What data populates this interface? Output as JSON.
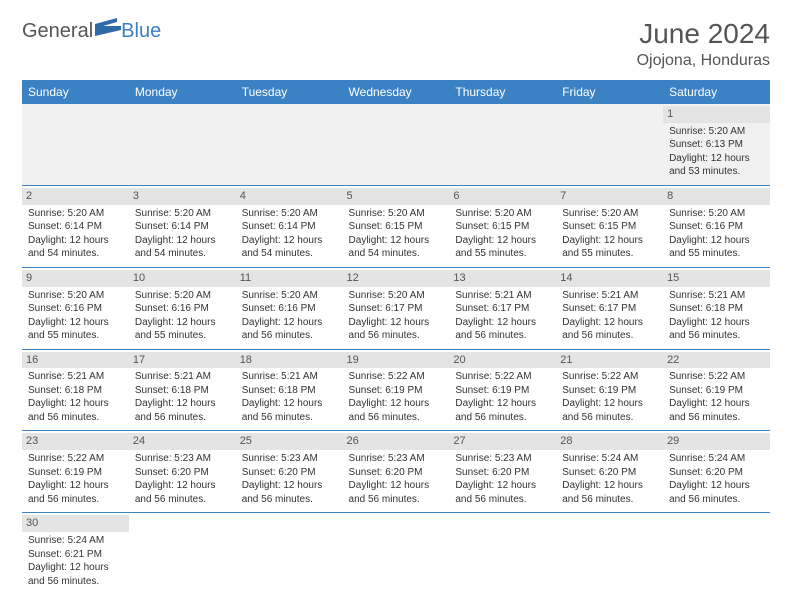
{
  "brand": {
    "part1": "General",
    "part2": "Blue"
  },
  "title": "June 2024",
  "location": "Ojojona, Honduras",
  "colors": {
    "header_bg": "#3b82c4",
    "header_text": "#ffffff",
    "daynum_bg": "#e4e4e4",
    "cell_border": "#3b82c4",
    "text": "#333333",
    "empty_bg": "#f1f1f1"
  },
  "weekdays": [
    "Sunday",
    "Monday",
    "Tuesday",
    "Wednesday",
    "Thursday",
    "Friday",
    "Saturday"
  ],
  "weeks": [
    [
      null,
      null,
      null,
      null,
      null,
      null,
      {
        "d": "1",
        "sr": "Sunrise: 5:20 AM",
        "ss": "Sunset: 6:13 PM",
        "dl1": "Daylight: 12 hours",
        "dl2": "and 53 minutes."
      }
    ],
    [
      {
        "d": "2",
        "sr": "Sunrise: 5:20 AM",
        "ss": "Sunset: 6:14 PM",
        "dl1": "Daylight: 12 hours",
        "dl2": "and 54 minutes."
      },
      {
        "d": "3",
        "sr": "Sunrise: 5:20 AM",
        "ss": "Sunset: 6:14 PM",
        "dl1": "Daylight: 12 hours",
        "dl2": "and 54 minutes."
      },
      {
        "d": "4",
        "sr": "Sunrise: 5:20 AM",
        "ss": "Sunset: 6:14 PM",
        "dl1": "Daylight: 12 hours",
        "dl2": "and 54 minutes."
      },
      {
        "d": "5",
        "sr": "Sunrise: 5:20 AM",
        "ss": "Sunset: 6:15 PM",
        "dl1": "Daylight: 12 hours",
        "dl2": "and 54 minutes."
      },
      {
        "d": "6",
        "sr": "Sunrise: 5:20 AM",
        "ss": "Sunset: 6:15 PM",
        "dl1": "Daylight: 12 hours",
        "dl2": "and 55 minutes."
      },
      {
        "d": "7",
        "sr": "Sunrise: 5:20 AM",
        "ss": "Sunset: 6:15 PM",
        "dl1": "Daylight: 12 hours",
        "dl2": "and 55 minutes."
      },
      {
        "d": "8",
        "sr": "Sunrise: 5:20 AM",
        "ss": "Sunset: 6:16 PM",
        "dl1": "Daylight: 12 hours",
        "dl2": "and 55 minutes."
      }
    ],
    [
      {
        "d": "9",
        "sr": "Sunrise: 5:20 AM",
        "ss": "Sunset: 6:16 PM",
        "dl1": "Daylight: 12 hours",
        "dl2": "and 55 minutes."
      },
      {
        "d": "10",
        "sr": "Sunrise: 5:20 AM",
        "ss": "Sunset: 6:16 PM",
        "dl1": "Daylight: 12 hours",
        "dl2": "and 55 minutes."
      },
      {
        "d": "11",
        "sr": "Sunrise: 5:20 AM",
        "ss": "Sunset: 6:16 PM",
        "dl1": "Daylight: 12 hours",
        "dl2": "and 56 minutes."
      },
      {
        "d": "12",
        "sr": "Sunrise: 5:20 AM",
        "ss": "Sunset: 6:17 PM",
        "dl1": "Daylight: 12 hours",
        "dl2": "and 56 minutes."
      },
      {
        "d": "13",
        "sr": "Sunrise: 5:21 AM",
        "ss": "Sunset: 6:17 PM",
        "dl1": "Daylight: 12 hours",
        "dl2": "and 56 minutes."
      },
      {
        "d": "14",
        "sr": "Sunrise: 5:21 AM",
        "ss": "Sunset: 6:17 PM",
        "dl1": "Daylight: 12 hours",
        "dl2": "and 56 minutes."
      },
      {
        "d": "15",
        "sr": "Sunrise: 5:21 AM",
        "ss": "Sunset: 6:18 PM",
        "dl1": "Daylight: 12 hours",
        "dl2": "and 56 minutes."
      }
    ],
    [
      {
        "d": "16",
        "sr": "Sunrise: 5:21 AM",
        "ss": "Sunset: 6:18 PM",
        "dl1": "Daylight: 12 hours",
        "dl2": "and 56 minutes."
      },
      {
        "d": "17",
        "sr": "Sunrise: 5:21 AM",
        "ss": "Sunset: 6:18 PM",
        "dl1": "Daylight: 12 hours",
        "dl2": "and 56 minutes."
      },
      {
        "d": "18",
        "sr": "Sunrise: 5:21 AM",
        "ss": "Sunset: 6:18 PM",
        "dl1": "Daylight: 12 hours",
        "dl2": "and 56 minutes."
      },
      {
        "d": "19",
        "sr": "Sunrise: 5:22 AM",
        "ss": "Sunset: 6:19 PM",
        "dl1": "Daylight: 12 hours",
        "dl2": "and 56 minutes."
      },
      {
        "d": "20",
        "sr": "Sunrise: 5:22 AM",
        "ss": "Sunset: 6:19 PM",
        "dl1": "Daylight: 12 hours",
        "dl2": "and 56 minutes."
      },
      {
        "d": "21",
        "sr": "Sunrise: 5:22 AM",
        "ss": "Sunset: 6:19 PM",
        "dl1": "Daylight: 12 hours",
        "dl2": "and 56 minutes."
      },
      {
        "d": "22",
        "sr": "Sunrise: 5:22 AM",
        "ss": "Sunset: 6:19 PM",
        "dl1": "Daylight: 12 hours",
        "dl2": "and 56 minutes."
      }
    ],
    [
      {
        "d": "23",
        "sr": "Sunrise: 5:22 AM",
        "ss": "Sunset: 6:19 PM",
        "dl1": "Daylight: 12 hours",
        "dl2": "and 56 minutes."
      },
      {
        "d": "24",
        "sr": "Sunrise: 5:23 AM",
        "ss": "Sunset: 6:20 PM",
        "dl1": "Daylight: 12 hours",
        "dl2": "and 56 minutes."
      },
      {
        "d": "25",
        "sr": "Sunrise: 5:23 AM",
        "ss": "Sunset: 6:20 PM",
        "dl1": "Daylight: 12 hours",
        "dl2": "and 56 minutes."
      },
      {
        "d": "26",
        "sr": "Sunrise: 5:23 AM",
        "ss": "Sunset: 6:20 PM",
        "dl1": "Daylight: 12 hours",
        "dl2": "and 56 minutes."
      },
      {
        "d": "27",
        "sr": "Sunrise: 5:23 AM",
        "ss": "Sunset: 6:20 PM",
        "dl1": "Daylight: 12 hours",
        "dl2": "and 56 minutes."
      },
      {
        "d": "28",
        "sr": "Sunrise: 5:24 AM",
        "ss": "Sunset: 6:20 PM",
        "dl1": "Daylight: 12 hours",
        "dl2": "and 56 minutes."
      },
      {
        "d": "29",
        "sr": "Sunrise: 5:24 AM",
        "ss": "Sunset: 6:20 PM",
        "dl1": "Daylight: 12 hours",
        "dl2": "and 56 minutes."
      }
    ],
    [
      {
        "d": "30",
        "sr": "Sunrise: 5:24 AM",
        "ss": "Sunset: 6:21 PM",
        "dl1": "Daylight: 12 hours",
        "dl2": "and 56 minutes."
      },
      null,
      null,
      null,
      null,
      null,
      null
    ]
  ]
}
